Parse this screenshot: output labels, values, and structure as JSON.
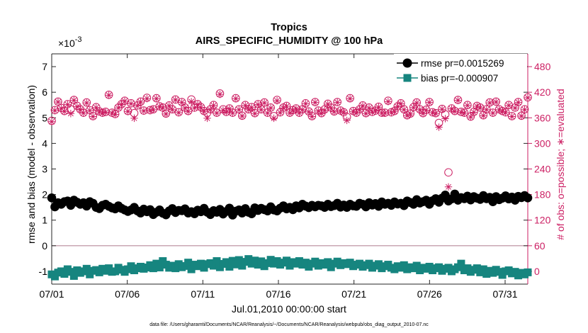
{
  "chart_data": {
    "type": "line",
    "title": "Tropics",
    "subtitle": "AIRS_SPECIFIC_HUMIDITY @ 100 hPa",
    "xlabel": "Jul.01,2010 00:00:00 start",
    "ylabel_left": "rmse and bias (model - observation)",
    "ylabel_right": "# of obs: o=possible; ∗=evaluated",
    "exponent_label": "×10",
    "exponent_power": "-3",
    "footnote": "data file: /Users/gharamti/Documents/NCAR/Reanalysis/~/Documents/NCAR/Reanalysis/webpub/obs_diag_output_2010-07.nc",
    "ylim_left": [
      -1.5,
      7.5
    ],
    "yticks_left": [
      -1,
      0,
      1,
      2,
      3,
      4,
      5,
      6,
      7
    ],
    "ylim_right": [
      -30,
      510
    ],
    "yticks_right": [
      0,
      60,
      120,
      180,
      240,
      300,
      360,
      420,
      480
    ],
    "xlim": [
      0,
      31.5
    ],
    "xticks": [
      0,
      5,
      10,
      15,
      20,
      25,
      30
    ],
    "xtick_labels": [
      "07/01",
      "07/06",
      "07/11",
      "07/16",
      "07/21",
      "07/26",
      "07/31"
    ],
    "zero_line": 0,
    "grid": false,
    "legend_position": "top-right",
    "colors": {
      "rmse": "#000000",
      "bias": "#16857f",
      "obs": "#cc1f63",
      "zero": "#b88a9a"
    },
    "series": [
      {
        "name": "rmse pr=0.0015269",
        "axis": "left",
        "marker": "circle",
        "values": [
          1.87,
          1.52,
          1.68,
          1.62,
          1.72,
          1.75,
          1.58,
          1.78,
          1.7,
          1.62,
          1.68,
          1.55,
          1.72,
          1.66,
          1.5,
          1.45,
          1.58,
          1.62,
          1.54,
          1.48,
          1.44,
          1.56,
          1.46,
          1.4,
          1.34,
          1.4,
          1.5,
          1.36,
          1.28,
          1.43,
          1.33,
          1.41,
          1.22,
          1.31,
          1.4,
          1.27,
          1.21,
          1.36,
          1.45,
          1.3,
          1.38,
          1.37,
          1.44,
          1.28,
          1.33,
          1.25,
          1.39,
          1.33,
          1.46,
          1.31,
          1.22,
          1.37,
          1.31,
          1.42,
          1.24,
          1.34,
          1.47,
          1.2,
          1.35,
          1.4,
          1.28,
          1.45,
          1.31,
          1.25,
          1.48,
          1.38,
          1.46,
          1.41,
          1.36,
          1.52,
          1.4,
          1.36,
          1.47,
          1.56,
          1.44,
          1.5,
          1.41,
          1.56,
          1.48,
          1.62,
          1.55,
          1.49,
          1.58,
          1.52,
          1.58,
          1.56,
          1.5,
          1.62,
          1.53,
          1.57,
          1.66,
          1.51,
          1.59,
          1.5,
          1.62,
          1.56,
          1.54,
          1.66,
          1.62,
          1.52,
          1.68,
          1.59,
          1.65,
          1.54,
          1.71,
          1.62,
          1.66,
          1.58,
          1.71,
          1.63,
          1.66,
          1.57,
          1.75,
          1.69,
          1.62,
          1.8,
          1.67,
          1.72,
          1.78,
          1.62,
          1.76,
          1.84,
          1.7,
          1.86,
          1.98,
          1.75,
          1.83,
          2.02,
          1.78,
          1.88,
          1.84,
          1.94,
          1.79,
          1.92,
          1.86,
          1.81,
          1.96,
          1.84,
          1.89,
          1.72,
          1.92,
          1.8,
          1.86,
          1.95,
          1.83,
          1.9,
          1.78,
          1.93,
          1.88,
          1.96,
          1.87
        ]
      },
      {
        "name": "bias pr=-0.000907",
        "axis": "left",
        "marker": "square",
        "values": [
          -1.12,
          -1.2,
          -1.05,
          -1.0,
          -1.1,
          -0.92,
          -1.02,
          -1.18,
          -0.96,
          -1.06,
          -1.0,
          -0.9,
          -1.12,
          -0.98,
          -0.95,
          -1.04,
          -0.9,
          -0.98,
          -0.88,
          -1.02,
          -1.0,
          -0.86,
          -0.94,
          -1.02,
          -0.92,
          -0.8,
          -0.96,
          -0.88,
          -0.82,
          -0.9,
          -0.85,
          -0.76,
          -0.88,
          -0.7,
          -0.85,
          -0.6,
          -0.74,
          -0.86,
          -0.78,
          -0.88,
          -0.72,
          -0.84,
          -0.79,
          -0.66,
          -0.92,
          -0.74,
          -0.8,
          -0.7,
          -0.86,
          -0.72,
          -0.68,
          -0.78,
          -0.6,
          -0.84,
          -0.71,
          -0.64,
          -0.82,
          -0.59,
          -0.73,
          -0.56,
          -0.78,
          -0.63,
          -0.52,
          -0.7,
          -0.58,
          -0.74,
          -0.61,
          -0.8,
          -0.68,
          -0.55,
          -0.7,
          -0.6,
          -0.74,
          -0.66,
          -0.58,
          -0.78,
          -0.64,
          -0.7,
          -0.6,
          -0.74,
          -0.66,
          -0.82,
          -0.7,
          -0.62,
          -0.78,
          -0.68,
          -0.74,
          -0.64,
          -0.84,
          -0.7,
          -0.62,
          -0.76,
          -0.68,
          -0.72,
          -0.66,
          -0.8,
          -0.74,
          -0.7,
          -0.82,
          -0.76,
          -0.7,
          -0.86,
          -0.78,
          -0.72,
          -0.88,
          -0.8,
          -0.74,
          -0.86,
          -0.92,
          -0.8,
          -0.86,
          -0.76,
          -0.92,
          -0.84,
          -0.88,
          -0.78,
          -0.96,
          -0.86,
          -0.9,
          -0.82,
          -0.96,
          -0.88,
          -0.84,
          -0.98,
          -0.9,
          -0.86,
          -1.0,
          -0.92,
          -0.84,
          -0.7,
          -0.96,
          -0.88,
          -1.02,
          -0.94,
          -0.88,
          -1.04,
          -0.92,
          -1.1,
          -0.98,
          -1.06,
          -0.94,
          -1.02,
          -1.14,
          -1.0,
          -0.96,
          -1.08,
          -1.02,
          -1.16,
          -1.06,
          -1.12,
          -1.04
        ]
      },
      {
        "name": "# of obs possible",
        "axis": "right",
        "marker": "open-circle",
        "values": [
          353,
          378,
          398,
          383,
          376,
          392,
          380,
          402,
          388,
          380,
          372,
          396,
          378,
          364,
          385,
          375,
          372,
          374,
          414,
          372,
          369,
          384,
          392,
          400,
          376,
          394,
          371,
          389,
          398,
          377,
          407,
          378,
          380,
          406,
          387,
          384,
          370,
          389,
          380,
          403,
          373,
          397,
          384,
          376,
          403,
          384,
          392,
          385,
          376,
          372,
          380,
          390,
          372,
          417,
          380,
          374,
          382,
          372,
          406,
          380,
          365,
          390,
          380,
          385,
          371,
          392,
          380,
          396,
          372,
          384,
          364,
          402,
          373,
          384,
          388,
          372,
          378,
          382,
          372,
          380,
          394,
          375,
          364,
          397,
          377,
          371,
          380,
          393,
          384,
          375,
          397,
          377,
          373,
          362,
          406,
          376,
          372,
          380,
          389,
          371,
          384,
          374,
          377,
          386,
          372,
          372,
          400,
          373,
          376,
          387,
          394,
          380,
          366,
          370,
          385,
          396,
          380,
          371,
          379,
          397,
          373,
          371,
          348,
          381,
          368,
          232,
          382,
          376,
          402,
          374,
          372,
          390,
          363,
          374,
          388,
          384,
          366,
          380,
          396,
          372,
          398,
          380,
          376,
          373,
          390,
          364,
          384,
          397,
          365,
          380,
          408
        ]
      },
      {
        "name": "# of obs evaluated",
        "axis": "right",
        "marker": "star",
        "values": [
          351,
          377,
          397,
          382,
          375,
          391,
          370,
          401,
          386,
          379,
          371,
          395,
          377,
          363,
          384,
          374,
          371,
          373,
          413,
          371,
          368,
          383,
          391,
          399,
          375,
          393,
          359,
          388,
          397,
          376,
          405,
          377,
          379,
          405,
          386,
          383,
          369,
          388,
          379,
          402,
          372,
          396,
          383,
          375,
          398,
          383,
          391,
          384,
          375,
          359,
          379,
          389,
          371,
          415,
          378,
          373,
          381,
          371,
          405,
          379,
          364,
          389,
          379,
          384,
          370,
          391,
          379,
          395,
          371,
          383,
          359,
          400,
          372,
          383,
          387,
          371,
          377,
          381,
          371,
          379,
          393,
          374,
          363,
          396,
          376,
          370,
          378,
          392,
          383,
          374,
          396,
          376,
          372,
          354,
          405,
          375,
          371,
          379,
          388,
          370,
          383,
          373,
          376,
          385,
          371,
          371,
          398,
          372,
          375,
          386,
          393,
          379,
          365,
          369,
          384,
          395,
          379,
          370,
          378,
          396,
          372,
          370,
          338,
          380,
          358,
          198,
          381,
          375,
          401,
          373,
          371,
          389,
          362,
          373,
          387,
          383,
          365,
          379,
          395,
          371,
          397,
          379,
          375,
          372,
          389,
          363,
          383,
          396,
          364,
          379,
          407
        ]
      }
    ]
  }
}
